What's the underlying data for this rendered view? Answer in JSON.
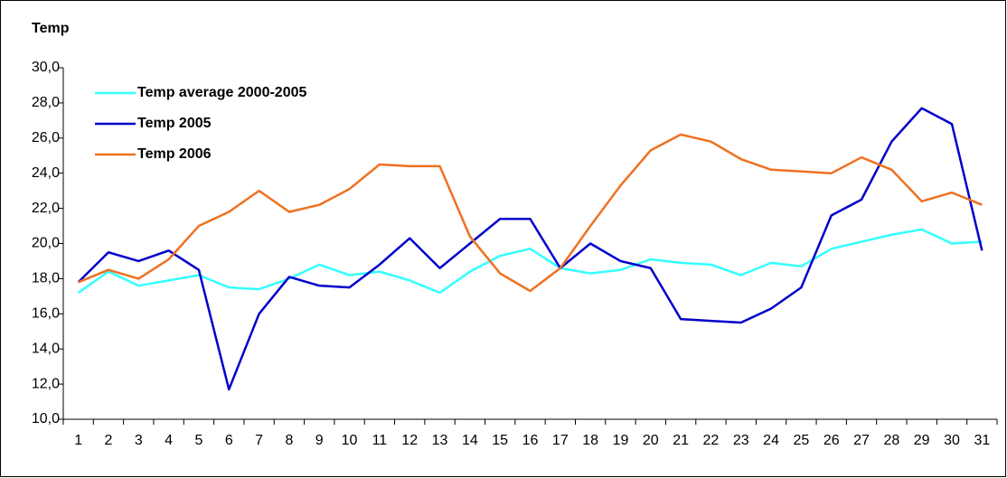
{
  "chart_data": {
    "type": "line",
    "title": "Temp",
    "categories": [
      "1",
      "2",
      "3",
      "4",
      "5",
      "6",
      "7",
      "8",
      "9",
      "10",
      "11",
      "12",
      "13",
      "14",
      "15",
      "16",
      "17",
      "18",
      "19",
      "20",
      "21",
      "22",
      "23",
      "24",
      "25",
      "26",
      "27",
      "28",
      "29",
      "30",
      "31"
    ],
    "series": [
      {
        "name": "Temp average 2000-2005",
        "color": "#33ffff",
        "values": [
          17.2,
          18.4,
          17.6,
          17.9,
          18.2,
          17.5,
          17.4,
          18.0,
          18.8,
          18.2,
          18.4,
          17.9,
          17.2,
          18.4,
          19.3,
          19.7,
          18.6,
          18.3,
          18.5,
          19.1,
          18.9,
          18.8,
          18.2,
          18.9,
          18.7,
          19.7,
          20.1,
          20.5,
          20.8,
          20.0,
          20.1
        ]
      },
      {
        "name": "Temp 2005",
        "color": "#0000cc",
        "values": [
          17.8,
          19.5,
          19.0,
          19.6,
          18.5,
          11.7,
          16.0,
          18.1,
          17.6,
          17.5,
          18.8,
          20.3,
          18.6,
          20.0,
          21.4,
          21.4,
          18.6,
          20.0,
          19.0,
          18.6,
          15.7,
          15.6,
          15.5,
          16.3,
          17.5,
          21.6,
          22.5,
          25.8,
          27.7,
          26.8,
          19.6
        ]
      },
      {
        "name": "Temp 2006",
        "color": "#f07020",
        "values": [
          17.8,
          18.5,
          18.0,
          19.1,
          21.0,
          21.8,
          23.0,
          21.8,
          22.2,
          23.1,
          24.5,
          24.4,
          24.4,
          20.4,
          18.3,
          17.3,
          18.6,
          21.0,
          23.3,
          25.3,
          26.2,
          25.8,
          24.8,
          24.2,
          24.1,
          24.0,
          24.9,
          24.2,
          22.4,
          22.9,
          22.2
        ]
      }
    ],
    "ylim": [
      10,
      30
    ],
    "yticks": [
      {
        "value": 10,
        "label": "10,0"
      },
      {
        "value": 12,
        "label": "12,0"
      },
      {
        "value": 14,
        "label": "14,0"
      },
      {
        "value": 16,
        "label": "16,0"
      },
      {
        "value": 18,
        "label": "18,0"
      },
      {
        "value": 20,
        "label": "20,0"
      },
      {
        "value": 22,
        "label": "22,0"
      },
      {
        "value": 24,
        "label": "24,0"
      },
      {
        "value": 26,
        "label": "26,0"
      },
      {
        "value": 28,
        "label": "28,0"
      },
      {
        "value": 30,
        "label": "30,0"
      }
    ],
    "grid": false,
    "legend": "top-left"
  }
}
